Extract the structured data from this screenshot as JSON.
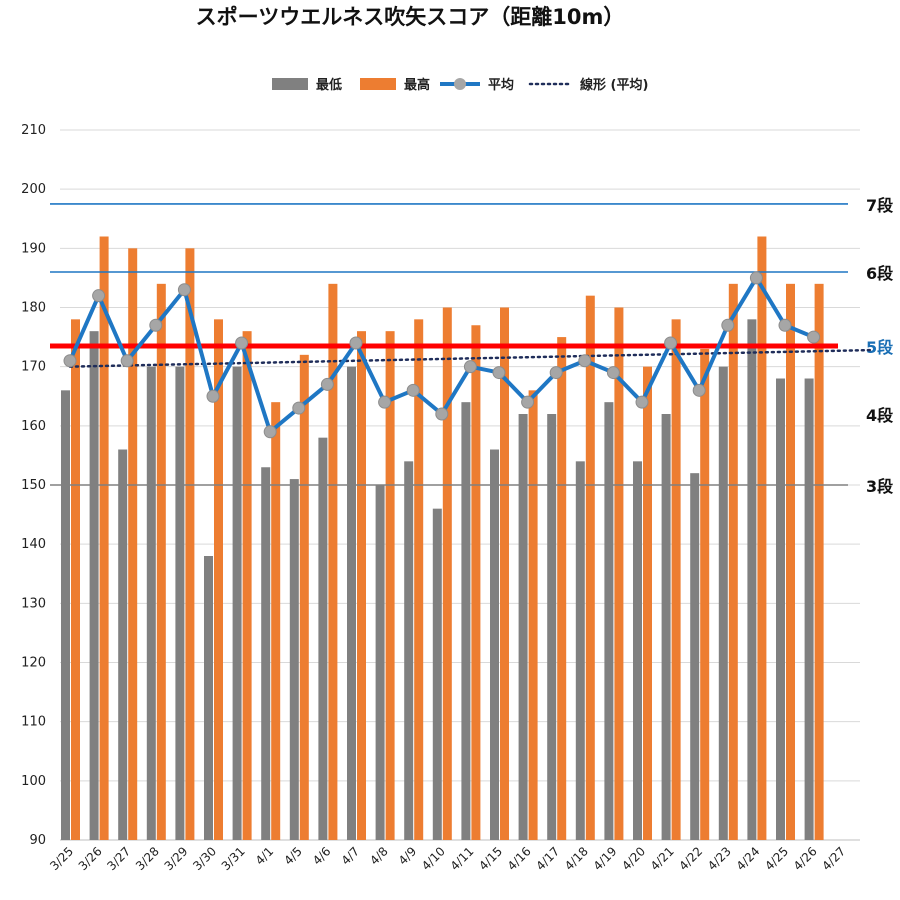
{
  "chart_data": {
    "type": "bar",
    "title": "スポーツウエルネス吹矢スコア（距離10m）",
    "xlabel": "",
    "ylabel": "",
    "ylim": [
      90,
      210
    ],
    "yticks": [
      90,
      100,
      110,
      120,
      130,
      140,
      150,
      160,
      170,
      180,
      190,
      200,
      210
    ],
    "grid": true,
    "legend_position": "top",
    "categories": [
      "3/25",
      "3/26",
      "3/27",
      "3/28",
      "3/29",
      "3/30",
      "3/31",
      "4/1",
      "4/5",
      "4/6",
      "4/7",
      "4/8",
      "4/9",
      "4/10",
      "4/11",
      "4/15",
      "4/16",
      "4/17",
      "4/18",
      "4/19",
      "4/20",
      "4/21",
      "4/22",
      "4/23",
      "4/24",
      "4/25",
      "4/26",
      "4/27"
    ],
    "series": [
      {
        "name": "最低",
        "kind": "bar",
        "color": "#808080",
        "values": [
          166,
          176,
          156,
          170,
          170,
          138,
          170,
          153,
          151,
          158,
          170,
          150,
          154,
          146,
          164,
          156,
          162,
          162,
          154,
          164,
          154,
          162,
          152,
          170,
          178,
          168,
          168,
          null
        ]
      },
      {
        "name": "最高",
        "kind": "bar",
        "color": "#ed7d31",
        "values": [
          178,
          192,
          190,
          184,
          190,
          178,
          176,
          164,
          172,
          184,
          176,
          176,
          178,
          180,
          177,
          180,
          166,
          175,
          182,
          180,
          170,
          178,
          173,
          184,
          192,
          184,
          184,
          null
        ]
      },
      {
        "name": "平均",
        "kind": "line",
        "color": "#1f77c4",
        "marker_color": "#a6a6a6",
        "values": [
          171,
          182,
          171,
          177,
          183,
          165,
          174,
          159,
          163,
          167,
          174,
          164,
          166,
          162,
          170,
          169,
          164,
          169,
          171,
          169,
          164,
          174,
          166,
          177,
          185,
          177,
          175,
          null
        ]
      },
      {
        "name": "線形 (平均)",
        "kind": "trendline",
        "color": "#1f2d5a",
        "style": "dotted",
        "values": [
          170.0,
          170.1,
          170.2,
          170.3,
          170.4,
          170.5,
          170.6,
          170.7,
          170.8,
          170.9,
          171.0,
          171.1,
          171.2,
          171.3,
          171.4,
          171.5,
          171.6,
          171.7,
          171.8,
          171.9,
          172.0,
          172.1,
          172.2,
          172.3,
          172.4,
          172.5,
          172.6,
          172.7
        ]
      }
    ],
    "reference_lines": [
      {
        "label": "7段",
        "value": 197.5,
        "color": "#1f77c4",
        "label_color": "#111111"
      },
      {
        "label": "6段",
        "value": 186,
        "color": "#1f77c4",
        "label_color": "#111111"
      },
      {
        "label": "5段",
        "value": 173.5,
        "color": "#ff0000",
        "label_color": "#1a6fb5"
      },
      {
        "label": "3段",
        "value": 150,
        "color": "#808080",
        "label_color": "#111111"
      }
    ],
    "annotations": [
      {
        "label": "4段",
        "value": 162
      }
    ]
  }
}
